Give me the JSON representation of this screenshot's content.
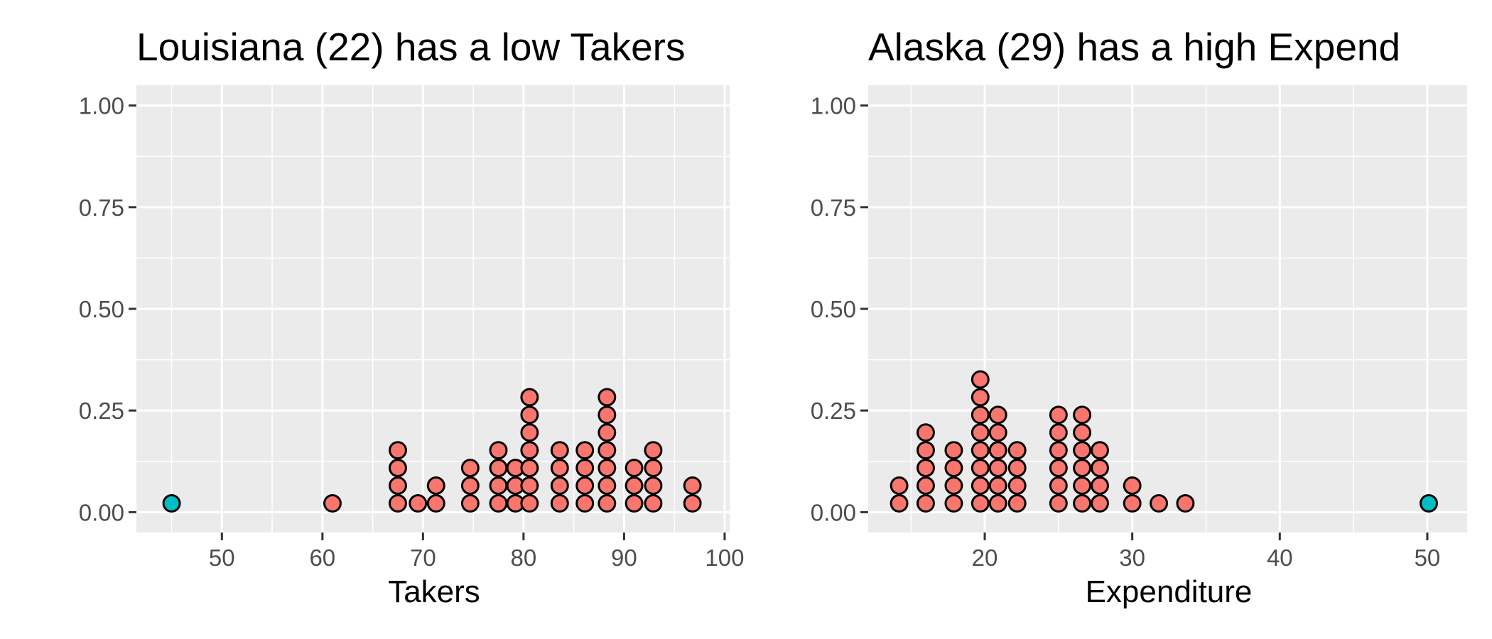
{
  "chart_data": [
    {
      "type": "dotplot",
      "title": "Louisiana (22) has a low Takers",
      "xlabel": "Takers",
      "ylabel": "",
      "xlim": [
        41.5,
        100.5
      ],
      "ylim": [
        -0.05,
        1.05
      ],
      "x_ticks": [
        50,
        60,
        70,
        80,
        90,
        100
      ],
      "x_tick_labels": [
        "50",
        "60",
        "70",
        "80",
        "90",
        "100"
      ],
      "y_ticks": [
        0,
        0.25,
        0.5,
        0.75,
        1
      ],
      "y_tick_labels": [
        "0.00",
        "0.25",
        "0.50",
        "0.75",
        "1.00"
      ],
      "grid": true,
      "legend": "none",
      "colors": {
        "normal": "#f8766d",
        "highlight": "#00bfc4"
      },
      "dot_step": 0.0435,
      "stacks": [
        {
          "x": 45,
          "count": 1,
          "highlight": true
        },
        {
          "x": 61,
          "count": 1,
          "highlight": false
        },
        {
          "x": 67.5,
          "count": 4,
          "highlight": false
        },
        {
          "x": 69.5,
          "count": 1,
          "highlight": false
        },
        {
          "x": 71.3,
          "count": 2,
          "highlight": false
        },
        {
          "x": 74.7,
          "count": 3,
          "highlight": false
        },
        {
          "x": 77.5,
          "count": 4,
          "highlight": false
        },
        {
          "x": 79.2,
          "count": 3,
          "highlight": false
        },
        {
          "x": 80.6,
          "count": 7,
          "highlight": false
        },
        {
          "x": 83.6,
          "count": 4,
          "highlight": false
        },
        {
          "x": 86.1,
          "count": 4,
          "highlight": false
        },
        {
          "x": 88.3,
          "count": 7,
          "highlight": false
        },
        {
          "x": 91,
          "count": 3,
          "highlight": false
        },
        {
          "x": 92.9,
          "count": 4,
          "highlight": false
        },
        {
          "x": 96.8,
          "count": 2,
          "highlight": false
        }
      ]
    },
    {
      "type": "dotplot",
      "title": "Alaska (29) has a high Expend",
      "xlabel": "Expenditure",
      "ylabel": "",
      "xlim": [
        12.1,
        52.7
      ],
      "ylim": [
        -0.05,
        1.05
      ],
      "x_ticks": [
        20,
        30,
        40,
        50
      ],
      "x_tick_labels": [
        "20",
        "30",
        "40",
        "50"
      ],
      "y_ticks": [
        0,
        0.25,
        0.5,
        0.75,
        1
      ],
      "y_tick_labels": [
        "0.00",
        "0.25",
        "0.50",
        "0.75",
        "1.00"
      ],
      "grid": true,
      "legend": "none",
      "colors": {
        "normal": "#f8766d",
        "highlight": "#00bfc4"
      },
      "dot_step": 0.0435,
      "stacks": [
        {
          "x": 14.2,
          "count": 2,
          "highlight": false
        },
        {
          "x": 16,
          "count": 5,
          "highlight": false
        },
        {
          "x": 17.9,
          "count": 4,
          "highlight": false
        },
        {
          "x": 19.7,
          "count": 8,
          "highlight": false
        },
        {
          "x": 20.9,
          "count": 6,
          "highlight": false
        },
        {
          "x": 22.2,
          "count": 4,
          "highlight": false
        },
        {
          "x": 25,
          "count": 6,
          "highlight": false
        },
        {
          "x": 26.6,
          "count": 6,
          "highlight": false
        },
        {
          "x": 27.8,
          "count": 4,
          "highlight": false
        },
        {
          "x": 30,
          "count": 2,
          "highlight": false
        },
        {
          "x": 31.8,
          "count": 1,
          "highlight": false
        },
        {
          "x": 33.6,
          "count": 1,
          "highlight": false
        },
        {
          "x": 50.1,
          "count": 1,
          "highlight": true
        }
      ]
    }
  ]
}
